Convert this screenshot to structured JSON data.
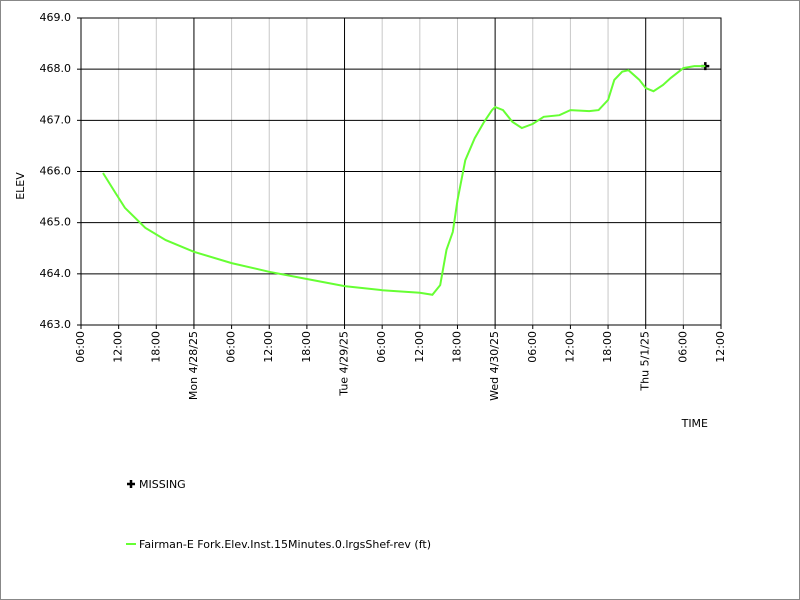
{
  "chart_data": {
    "type": "line",
    "xlabel": "TIME",
    "ylabel": "ELEV",
    "xlim": [
      "2025-04-27 06:00",
      "2025-05-01 12:00"
    ],
    "xticks": [
      {
        "value": "2025-04-27 06:00",
        "label": "06:00"
      },
      {
        "value": "2025-04-27 12:00",
        "label": "12:00"
      },
      {
        "value": "2025-04-27 18:00",
        "label": "18:00"
      },
      {
        "value": "2025-04-28 00:00",
        "label": "Mon 4/28/25"
      },
      {
        "value": "2025-04-28 06:00",
        "label": "06:00"
      },
      {
        "value": "2025-04-28 12:00",
        "label": "12:00"
      },
      {
        "value": "2025-04-28 18:00",
        "label": "18:00"
      },
      {
        "value": "2025-04-29 00:00",
        "label": "Tue 4/29/25"
      },
      {
        "value": "2025-04-29 06:00",
        "label": "06:00"
      },
      {
        "value": "2025-04-29 12:00",
        "label": "12:00"
      },
      {
        "value": "2025-04-29 18:00",
        "label": "18:00"
      },
      {
        "value": "2025-04-30 00:00",
        "label": "Wed 4/30/25"
      },
      {
        "value": "2025-04-30 06:00",
        "label": "06:00"
      },
      {
        "value": "2025-04-30 12:00",
        "label": "12:00"
      },
      {
        "value": "2025-04-30 18:00",
        "label": "18:00"
      },
      {
        "value": "2025-05-01 00:00",
        "label": "Thu 5/1/25"
      },
      {
        "value": "2025-05-01 06:00",
        "label": "06:00"
      },
      {
        "value": "2025-05-01 12:00",
        "label": "12:00"
      }
    ],
    "ylim": [
      463,
      469
    ],
    "yticks": [
      {
        "value": 463,
        "label": "463.0"
      },
      {
        "value": 464,
        "label": "464.0"
      },
      {
        "value": 465,
        "label": "465.0"
      },
      {
        "value": 466,
        "label": "466.0"
      },
      {
        "value": 467,
        "label": "467.0"
      },
      {
        "value": 468,
        "label": "468.0"
      },
      {
        "value": 469,
        "label": "469.0"
      }
    ],
    "grid": true,
    "series": [
      {
        "name": "MISSING",
        "color": "#000000",
        "marker": "plus",
        "x": [
          "2025-05-01 09:30"
        ],
        "values": [
          468.06
        ]
      },
      {
        "name": "Fairman-E Fork.Elev.Inst.15Minutes.0.lrgsShef-rev (ft)",
        "color": "#66ff33",
        "x": [
          "2025-04-27 09:30",
          "2025-04-27 11:30",
          "2025-04-27 13:00",
          "2025-04-27 16:15",
          "2025-04-27 19:30",
          "2025-04-28 00:00",
          "2025-04-28 06:00",
          "2025-04-28 12:00",
          "2025-04-28 18:00",
          "2025-04-29 00:00",
          "2025-04-29 06:00",
          "2025-04-29 12:00",
          "2025-04-29 14:00",
          "2025-04-29 15:15",
          "2025-04-29 16:15",
          "2025-04-29 17:15",
          "2025-04-29 18:00",
          "2025-04-29 19:15",
          "2025-04-29 20:45",
          "2025-04-29 22:15",
          "2025-04-29 23:30",
          "2025-04-30 00:00",
          "2025-04-30 01:15",
          "2025-04-30 02:45",
          "2025-04-30 04:15",
          "2025-04-30 06:00",
          "2025-04-30 07:45",
          "2025-04-30 10:15",
          "2025-04-30 12:00",
          "2025-04-30 15:00",
          "2025-04-30 16:30",
          "2025-04-30 18:00",
          "2025-04-30 19:00",
          "2025-04-30 20:15",
          "2025-04-30 21:15",
          "2025-04-30 23:00",
          "2025-05-01 00:00",
          "2025-05-01 01:15",
          "2025-05-01 02:45",
          "2025-05-01 04:00",
          "2025-05-01 06:00",
          "2025-05-01 07:45",
          "2025-05-01 09:30"
        ],
        "values": [
          465.97,
          465.58,
          465.29,
          464.9,
          464.66,
          464.43,
          464.21,
          464.04,
          463.9,
          463.76,
          463.68,
          463.63,
          463.59,
          463.78,
          464.47,
          464.82,
          465.44,
          466.22,
          466.65,
          466.97,
          467.2,
          467.26,
          467.2,
          466.97,
          466.85,
          466.93,
          467.07,
          467.1,
          467.2,
          467.18,
          467.2,
          467.4,
          467.79,
          467.95,
          467.98,
          467.79,
          467.63,
          467.57,
          467.69,
          467.83,
          468.02,
          468.06,
          468.06
        ]
      }
    ]
  }
}
